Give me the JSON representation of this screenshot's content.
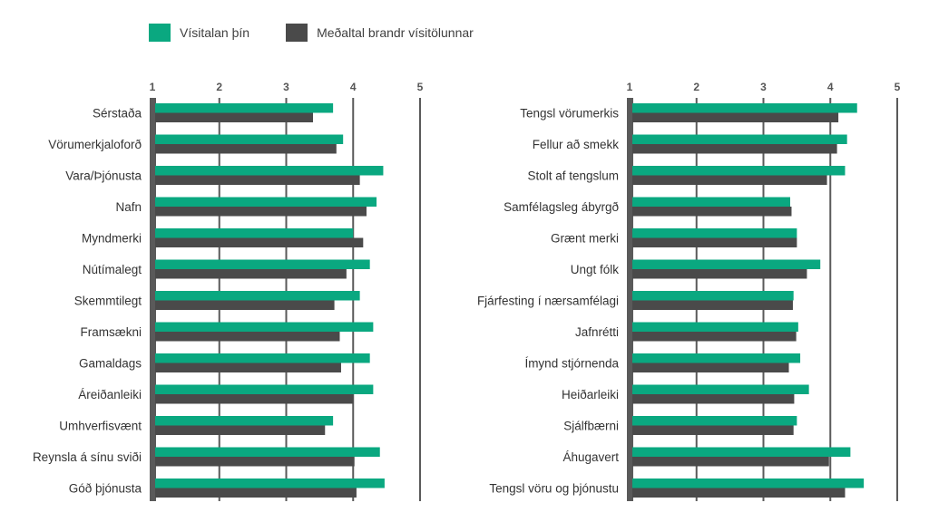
{
  "legend": {
    "series1": "Vísitalan þín",
    "series2": "Meðaltal brandr vísitölunnar"
  },
  "colors": {
    "series1": "#0aa880",
    "series2": "#4a4a4a",
    "axis": "#5a5a5a"
  },
  "chart_data": [
    {
      "type": "bar",
      "orientation": "horizontal",
      "xlim": [
        1,
        5
      ],
      "ticks": [
        "1",
        "2",
        "3",
        "4",
        "5"
      ],
      "categories": [
        "Sérstaða",
        "Vörumerkjaloforð",
        "Vara/Þjónusta",
        "Nafn",
        "Myndmerki",
        "Nútímalegt",
        "Skemmtilegt",
        "Framsækni",
        "Gamaldags",
        "Áreiðanleiki",
        "Umhverfisvænt",
        "Reynsla á sínu sviði",
        "Góð þjónusta"
      ],
      "series": [
        {
          "name": "Vísitalan þín",
          "values": [
            3.7,
            3.85,
            4.45,
            4.35,
            4.0,
            4.25,
            4.1,
            4.3,
            4.25,
            4.3,
            3.7,
            4.4,
            4.47
          ]
        },
        {
          "name": "Meðaltal brandr vísitölunnar",
          "values": [
            3.4,
            3.75,
            4.1,
            4.2,
            4.15,
            3.9,
            3.72,
            3.8,
            3.82,
            4.0,
            3.58,
            4.02,
            4.05
          ]
        }
      ]
    },
    {
      "type": "bar",
      "orientation": "horizontal",
      "xlim": [
        1,
        5
      ],
      "ticks": [
        "1",
        "2",
        "3",
        "4",
        "5"
      ],
      "categories": [
        "Tengsl vörumerkis",
        "Fellur að smekk",
        "Stolt af tengslum",
        "Samfélagsleg ábyrgð",
        "Grænt merki",
        "Ungt fólk",
        "Fjárfesting í nærsamfélagi",
        "Jafnrétti",
        "Ímynd stjórnenda",
        "Heiðarleiki",
        "Sjálfbærni",
        "Áhugavert",
        "Tengsl vöru og þjónustu"
      ],
      "series": [
        {
          "name": "Vísitalan þín",
          "values": [
            4.4,
            4.25,
            4.22,
            3.4,
            3.5,
            3.85,
            3.45,
            3.52,
            3.55,
            3.68,
            3.5,
            4.3,
            4.5
          ]
        },
        {
          "name": "Meðaltal brandr vísitölunnar",
          "values": [
            4.12,
            4.1,
            3.95,
            3.42,
            3.5,
            3.65,
            3.44,
            3.49,
            3.38,
            3.46,
            3.45,
            3.98,
            4.22
          ]
        }
      ]
    }
  ]
}
